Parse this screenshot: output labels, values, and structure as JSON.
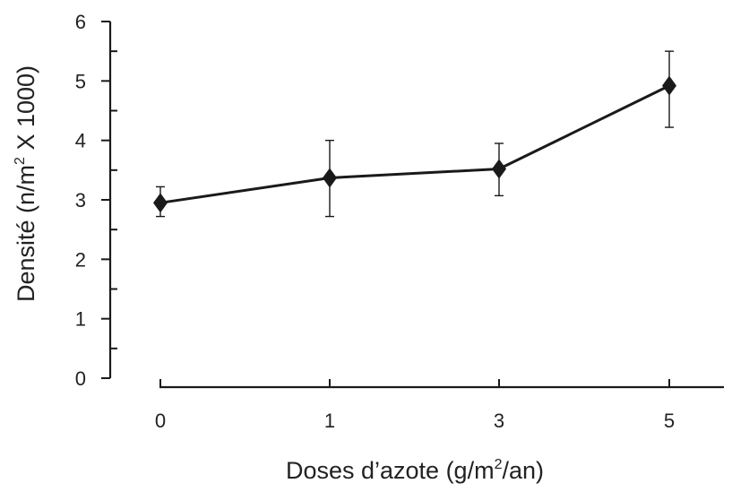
{
  "chart_data": {
    "type": "line",
    "categories": [
      "0",
      "1",
      "3",
      "5"
    ],
    "series": [
      {
        "values": [
          2.95,
          3.37,
          3.52,
          4.92
        ],
        "error_low": [
          2.72,
          2.72,
          3.07,
          4.22
        ],
        "error_high": [
          3.22,
          4.0,
          3.95,
          5.5
        ]
      }
    ],
    "marker": "diamond",
    "color": "#1a1a1a",
    "xlabel": {
      "pre": "Doses d’azote (g/m",
      "sup": "2",
      "post": "/an)"
    },
    "ylabel": {
      "pre": "Densité (n/m",
      "sup": "2",
      "post": " X 1000)"
    },
    "yticks": [
      "0",
      "1",
      "2",
      "3",
      "4",
      "5",
      "6"
    ],
    "ylim": [
      0,
      6
    ],
    "grid": false
  }
}
